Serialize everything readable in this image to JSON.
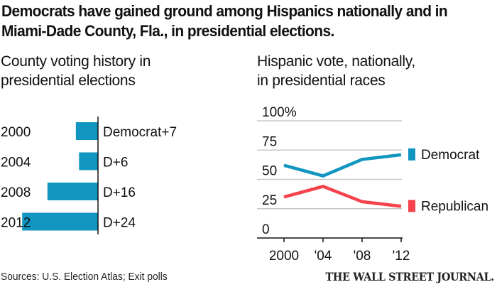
{
  "headline": {
    "line1": "Democrats have gained ground among Hispanics nationally and in",
    "line2": "Miami-Dade County, Fla., in presidential elections."
  },
  "colors": {
    "democrat": "#1196c2",
    "republican": "#f6424b",
    "grid": "#c8c8c8",
    "axis": "#111111"
  },
  "chart_data": [
    {
      "type": "bar",
      "orientation": "horizontal",
      "title": "County voting history in presidential elections",
      "title_lines": [
        "County voting history in",
        "presidential elections"
      ],
      "categories": [
        "2000",
        "2004",
        "2008",
        "2012"
      ],
      "values": [
        7,
        6,
        16,
        24
      ],
      "labels": [
        "Democrat+7",
        "D+6",
        "D+16",
        "D+24"
      ],
      "xlabel": "",
      "ylabel": "",
      "units": "Democratic margin (percentage points)"
    },
    {
      "type": "line",
      "title": "Hispanic vote, nationally, in presidential races",
      "title_lines": [
        "Hispanic vote, nationally,",
        "in presidential races"
      ],
      "x": [
        "2000",
        "'04",
        "'08",
        "'12"
      ],
      "series": [
        {
          "name": "Democrat",
          "values": [
            62,
            53,
            67,
            71
          ]
        },
        {
          "name": "Republican",
          "values": [
            35,
            44,
            31,
            27
          ]
        }
      ],
      "ylim": [
        0,
        100
      ],
      "yticks": [
        "100%",
        "75",
        "50",
        "25",
        "0"
      ],
      "ytick_values": [
        100,
        75,
        50,
        25,
        0
      ],
      "grid": true,
      "legend": "right"
    }
  ],
  "footer": {
    "sources": "Sources: U.S. Election Atlas; Exit polls",
    "publisher": "THE WALL STREET JOURNAL."
  }
}
